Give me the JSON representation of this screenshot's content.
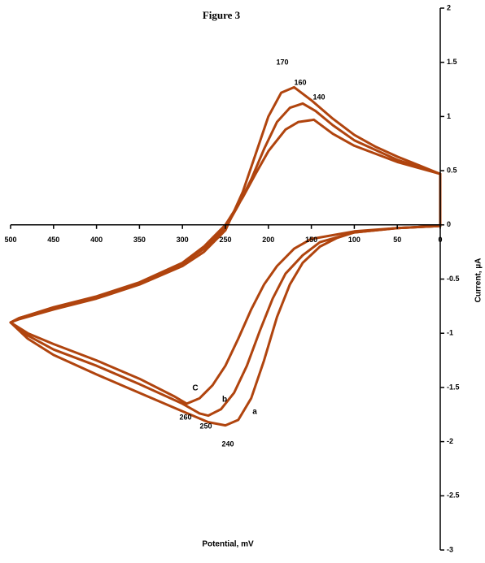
{
  "chart_data": {
    "type": "line",
    "title": "Figure 3",
    "x_label": "Potential, mV",
    "y_label": "Current, µA",
    "xlim": [
      500,
      0
    ],
    "ylim": [
      -3,
      2
    ],
    "xticks": [
      500,
      450,
      400,
      350,
      300,
      250,
      200,
      150,
      100,
      50,
      0
    ],
    "yticks": [
      2,
      1.5,
      1,
      0.5,
      0,
      -0.5,
      -1,
      -1.5,
      -2,
      -2.5,
      -3
    ],
    "annotations": [
      "170",
      "160",
      "140",
      "C",
      "b",
      "a",
      "260",
      "250",
      "240"
    ],
    "series": [
      {
        "color": "#b0440e",
        "x": [
          0,
          25,
          50,
          75,
          100,
          125,
          150,
          170,
          185,
          200,
          215,
          230,
          250,
          275,
          300,
          350,
          400,
          450,
          490,
          500,
          480,
          450,
          400,
          350,
          300,
          270,
          250,
          235,
          220,
          205,
          190,
          175,
          160,
          140,
          120,
          100,
          50,
          0
        ],
        "values": [
          0.47,
          0.55,
          0.63,
          0.72,
          0.83,
          0.98,
          1.15,
          1.27,
          1.22,
          1.0,
          0.65,
          0.3,
          -0.05,
          -0.25,
          -0.38,
          -0.55,
          -0.68,
          -0.78,
          -0.87,
          -0.9,
          -1.05,
          -1.2,
          -1.38,
          -1.55,
          -1.72,
          -1.82,
          -1.85,
          -1.8,
          -1.6,
          -1.25,
          -0.85,
          -0.55,
          -0.35,
          -0.2,
          -0.12,
          -0.07,
          -0.03,
          -0.01
        ]
      },
      {
        "color": "#b0440e",
        "x": [
          0,
          50,
          100,
          125,
          145,
          160,
          175,
          190,
          205,
          220,
          235,
          250,
          275,
          300,
          350,
          400,
          450,
          490,
          500,
          480,
          450,
          400,
          350,
          300,
          280,
          270,
          255,
          240,
          225,
          210,
          195,
          180,
          160,
          140,
          100,
          50,
          0
        ],
        "values": [
          0.47,
          0.6,
          0.78,
          0.92,
          1.05,
          1.12,
          1.08,
          0.95,
          0.7,
          0.42,
          0.18,
          -0.03,
          -0.22,
          -0.36,
          -0.54,
          -0.67,
          -0.77,
          -0.86,
          -0.9,
          -1.02,
          -1.15,
          -1.3,
          -1.47,
          -1.65,
          -1.74,
          -1.76,
          -1.7,
          -1.55,
          -1.3,
          -0.98,
          -0.68,
          -0.45,
          -0.28,
          -0.16,
          -0.07,
          -0.03,
          -0.01
        ]
      },
      {
        "color": "#b0440e",
        "x": [
          0,
          50,
          100,
          125,
          147,
          165,
          180,
          200,
          215,
          230,
          250,
          275,
          300,
          350,
          400,
          450,
          490,
          500,
          480,
          450,
          400,
          350,
          310,
          295,
          280,
          265,
          250,
          235,
          220,
          205,
          190,
          170,
          150,
          100,
          50,
          0
        ],
        "values": [
          0.47,
          0.58,
          0.73,
          0.84,
          0.97,
          0.95,
          0.88,
          0.68,
          0.47,
          0.25,
          0.0,
          -0.2,
          -0.35,
          -0.53,
          -0.66,
          -0.76,
          -0.86,
          -0.9,
          -1.0,
          -1.1,
          -1.25,
          -1.42,
          -1.58,
          -1.65,
          -1.6,
          -1.48,
          -1.3,
          -1.05,
          -0.78,
          -0.55,
          -0.38,
          -0.22,
          -0.13,
          -0.06,
          -0.03,
          -0.01
        ]
      }
    ]
  }
}
